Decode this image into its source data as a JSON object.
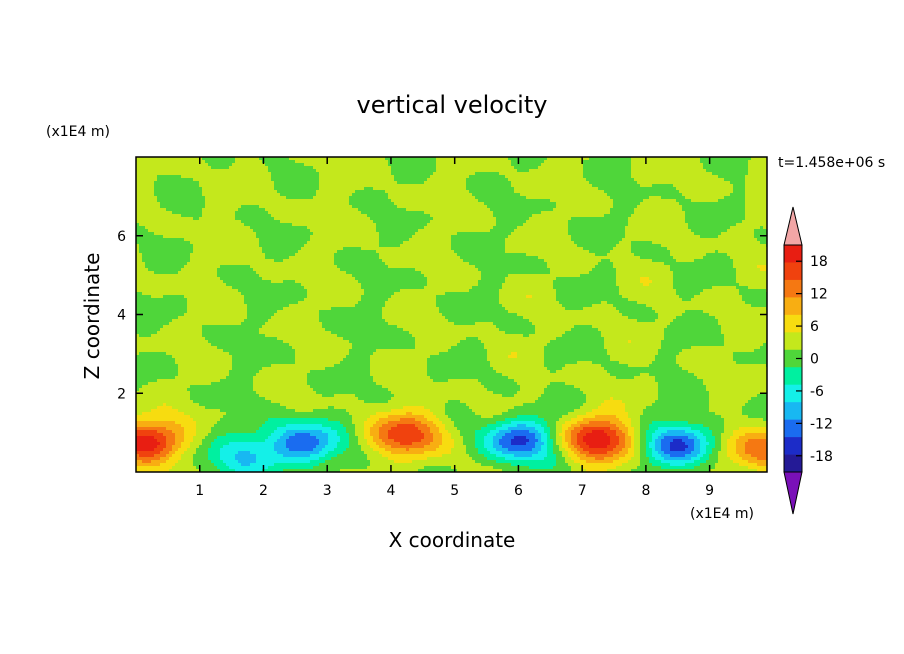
{
  "chart_data": {
    "type": "heatmap",
    "title": "vertical velocity",
    "xlabel": "X coordinate",
    "ylabel": "Z coordinate",
    "x_unit": "(x1E4 m)",
    "y_unit": "(x1E4 m)",
    "time_label": "t=1.458e+06 s",
    "xlim": [
      0,
      9.9
    ],
    "ylim": [
      0,
      8
    ],
    "x_ticks": [
      "1",
      "2",
      "3",
      "4",
      "5",
      "6",
      "7",
      "8",
      "9"
    ],
    "y_ticks": [
      "2",
      "4",
      "6"
    ],
    "colorbar": {
      "ticks": [
        "18",
        "12",
        "6",
        "0",
        "-6",
        "-12",
        "-18"
      ],
      "range": [
        -21,
        21
      ],
      "extend": "both",
      "levels": [
        {
          "max": 21,
          "color": "#f2a6a6"
        },
        {
          "max": 18,
          "color": "#e81e12"
        },
        {
          "max": 15,
          "color": "#f0420e"
        },
        {
          "max": 12,
          "color": "#f57812"
        },
        {
          "max": 9,
          "color": "#f8ae12"
        },
        {
          "max": 6,
          "color": "#f7dc10"
        },
        {
          "max": 3,
          "color": "#c4e81c"
        },
        {
          "max": 0,
          "color": "#4fd63a"
        },
        {
          "max": -3,
          "color": "#00f0a0"
        },
        {
          "max": -6,
          "color": "#14f0e8"
        },
        {
          "max": -9,
          "color": "#18b8f2"
        },
        {
          "max": -12,
          "color": "#1a6cf0"
        },
        {
          "max": -15,
          "color": "#1c2cc8"
        },
        {
          "max": -18,
          "color": "#241a96"
        },
        {
          "max": -21,
          "color": "#7a10b8"
        }
      ]
    },
    "features": [
      {
        "x": 0.15,
        "z": 0.8,
        "w": 17
      },
      {
        "x": 1.75,
        "z": 0.4,
        "w": -9
      },
      {
        "x": 2.6,
        "z": 0.75,
        "w": -14
      },
      {
        "x": 4.3,
        "z": 0.95,
        "w": 14
      },
      {
        "x": 6.0,
        "z": 0.8,
        "w": -16
      },
      {
        "x": 7.25,
        "z": 0.85,
        "w": 17
      },
      {
        "x": 8.55,
        "z": 0.7,
        "w": -15
      },
      {
        "x": 9.8,
        "z": 0.55,
        "w": 11
      }
    ]
  }
}
